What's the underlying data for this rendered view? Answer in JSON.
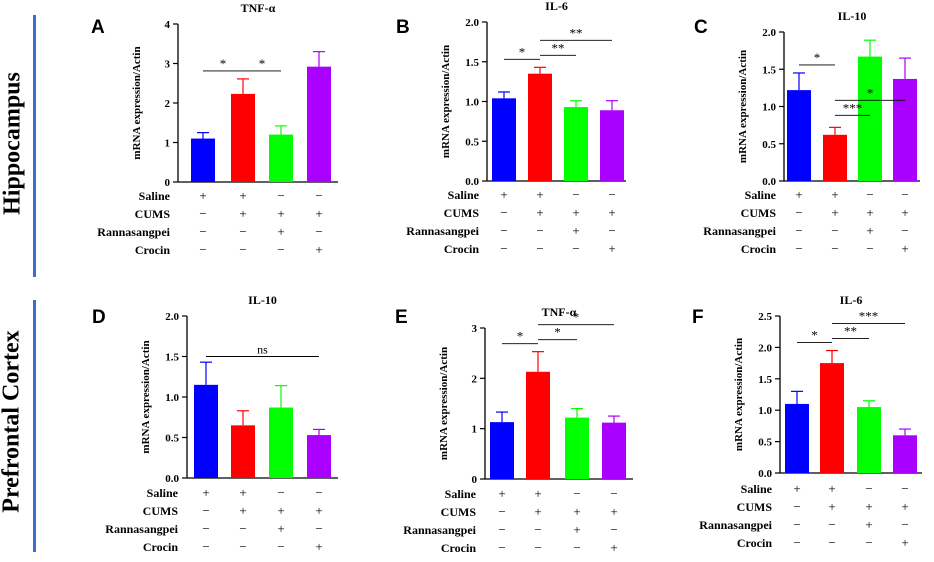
{
  "colors": {
    "saline": "#0000ff",
    "cums": "#ff0000",
    "rannasangpei": "#00ff00",
    "crocin": "#aa00ff",
    "row_line": "#3a6fd0"
  },
  "row_labels": {
    "top": "Hippocampus",
    "bottom": "Prefrontal Cortex"
  },
  "condition_labels": [
    "Saline",
    "CUMS",
    "Rannasangpei",
    "Crocin"
  ],
  "condition_signs": [
    [
      "+",
      "+",
      "−",
      "−"
    ],
    [
      "−",
      "+",
      "+",
      "+"
    ],
    [
      "−",
      "−",
      "+",
      "−"
    ],
    [
      "−",
      "−",
      "−",
      "+"
    ]
  ],
  "chart_data": [
    {
      "panel": "A",
      "type": "bar",
      "title": "TNF-α",
      "ylabel": "mRNA expression/Actin",
      "ylim": [
        0,
        4
      ],
      "yticks": [
        "0",
        "1",
        "2",
        "3",
        "4"
      ],
      "categories": [
        "Saline",
        "CUMS",
        "CUMS+Rannasangpei",
        "CUMS+Crocin"
      ],
      "values": [
        1.1,
        2.23,
        1.2,
        2.92
      ],
      "errors": [
        0.15,
        0.38,
        0.22,
        0.38
      ],
      "significance": [
        {
          "from": 0,
          "to": 1,
          "label": "*"
        },
        {
          "from": 1,
          "to": 2,
          "label": "*"
        }
      ]
    },
    {
      "panel": "B",
      "type": "bar",
      "title": "IL-6",
      "ylabel": "mRNA expression/Actin",
      "ylim": [
        0,
        2
      ],
      "yticks": [
        "0.0",
        "0.5",
        "1.0",
        "1.5",
        "2.0"
      ],
      "categories": [
        "Saline",
        "CUMS",
        "CUMS+Rannasangpei",
        "CUMS+Crocin"
      ],
      "values": [
        1.04,
        1.35,
        0.93,
        0.89
      ],
      "errors": [
        0.08,
        0.08,
        0.08,
        0.12
      ],
      "significance": [
        {
          "from": 0,
          "to": 1,
          "label": "*"
        },
        {
          "from": 1,
          "to": 2,
          "label": "**"
        },
        {
          "from": 1,
          "to": 3,
          "label": "**"
        }
      ]
    },
    {
      "panel": "C",
      "type": "bar",
      "title": "IL-10",
      "ylabel": "mRNA expression/Actin",
      "ylim": [
        0,
        2
      ],
      "yticks": [
        "0.0",
        "0.5",
        "1.0",
        "1.5",
        "2.0"
      ],
      "categories": [
        "Saline",
        "CUMS",
        "CUMS+Rannasangpei",
        "CUMS+Crocin"
      ],
      "values": [
        1.22,
        0.62,
        1.67,
        1.37
      ],
      "errors": [
        0.23,
        0.1,
        0.22,
        0.28
      ],
      "significance": [
        {
          "from": 0,
          "to": 1,
          "label": "*"
        },
        {
          "from": 1,
          "to": 2,
          "label": "***"
        },
        {
          "from": 1,
          "to": 3,
          "label": "*"
        }
      ]
    },
    {
      "panel": "D",
      "type": "bar",
      "title": "IL-10",
      "ylabel": "mRNA expression/Actin",
      "ylim": [
        0,
        2
      ],
      "yticks": [
        "0.0",
        "0.5",
        "1.0",
        "1.5",
        "2.0"
      ],
      "categories": [
        "Saline",
        "CUMS",
        "CUMS+Rannasangpei",
        "CUMS+Crocin"
      ],
      "values": [
        1.15,
        0.65,
        0.87,
        0.53
      ],
      "errors": [
        0.28,
        0.18,
        0.27,
        0.07
      ],
      "significance": [
        {
          "from": 0,
          "to": 3,
          "label": "ns"
        }
      ]
    },
    {
      "panel": "E",
      "type": "bar",
      "title": "TNF-α",
      "ylabel": "mRNA expression/Actin",
      "ylim": [
        0,
        3
      ],
      "yticks": [
        "0",
        "1",
        "2",
        "3"
      ],
      "categories": [
        "Saline",
        "CUMS",
        "CUMS+Rannasangpei",
        "CUMS+Crocin"
      ],
      "values": [
        1.13,
        2.13,
        1.22,
        1.12
      ],
      "errors": [
        0.2,
        0.4,
        0.18,
        0.13
      ],
      "significance": [
        {
          "from": 0,
          "to": 1,
          "label": "*"
        },
        {
          "from": 1,
          "to": 2,
          "label": "*"
        },
        {
          "from": 1,
          "to": 3,
          "label": "*"
        }
      ]
    },
    {
      "panel": "F",
      "type": "bar",
      "title": "IL-6",
      "ylabel": "mRNA expression/Actin",
      "ylim": [
        0,
        2.5
      ],
      "yticks": [
        "0.0",
        "0.5",
        "1.0",
        "1.5",
        "2.0",
        "2.5"
      ],
      "categories": [
        "Saline",
        "CUMS",
        "CUMS+Rannasangpei",
        "CUMS+Crocin"
      ],
      "values": [
        1.1,
        1.75,
        1.05,
        0.6
      ],
      "errors": [
        0.2,
        0.2,
        0.1,
        0.1
      ],
      "significance": [
        {
          "from": 0,
          "to": 1,
          "label": "*"
        },
        {
          "from": 1,
          "to": 2,
          "label": "**"
        },
        {
          "from": 1,
          "to": 3,
          "label": "***"
        }
      ]
    }
  ]
}
